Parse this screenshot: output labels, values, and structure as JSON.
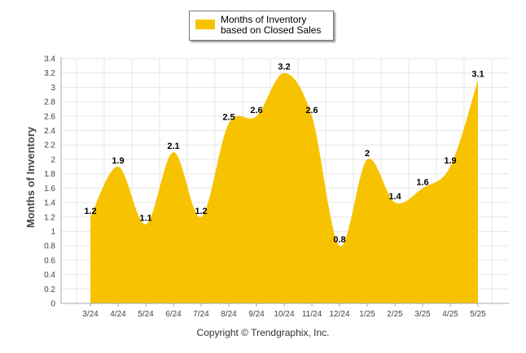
{
  "legend": {
    "label": "Months of Inventory based on Closed Sales"
  },
  "footer": {
    "copyright": "Copyright © Trendgraphix, Inc."
  },
  "colors": {
    "area": "#F7C300",
    "grid": "#E6E6E6",
    "axis": "#AAAAAA"
  },
  "chart_data": {
    "type": "area",
    "categories": [
      "3/24",
      "4/24",
      "5/24",
      "6/24",
      "7/24",
      "8/24",
      "9/24",
      "10/24",
      "11/24",
      "12/24",
      "1/25",
      "2/25",
      "3/25",
      "4/25",
      "5/25"
    ],
    "series": [
      {
        "name": "Months of Inventory based on Closed Sales",
        "values": [
          1.2,
          1.9,
          1.1,
          2.1,
          1.2,
          2.5,
          2.6,
          3.2,
          2.6,
          0.8,
          2,
          1.4,
          1.6,
          1.9,
          3.1
        ]
      }
    ],
    "data_labels": [
      "1.2",
      "1.9",
      "1.1",
      "2.1",
      "1.2",
      "2.5",
      "2.6",
      "3.2",
      "2.6",
      "0.8",
      "2",
      "1.4",
      "1.6",
      "1.9",
      "3.1"
    ],
    "yticks": [
      "0",
      "0.2",
      "0.4",
      "0.6",
      "0.8",
      "1",
      "1.2",
      "1.4",
      "1.6",
      "1.8",
      "2",
      "2.2",
      "2.4",
      "2.6",
      "2.8",
      "3",
      "3.2",
      "3.4"
    ],
    "ylabel": "Months of Inventory",
    "xlabel": "",
    "ylim": [
      0,
      3.4
    ],
    "grid": true,
    "legend_position": "top-center"
  }
}
